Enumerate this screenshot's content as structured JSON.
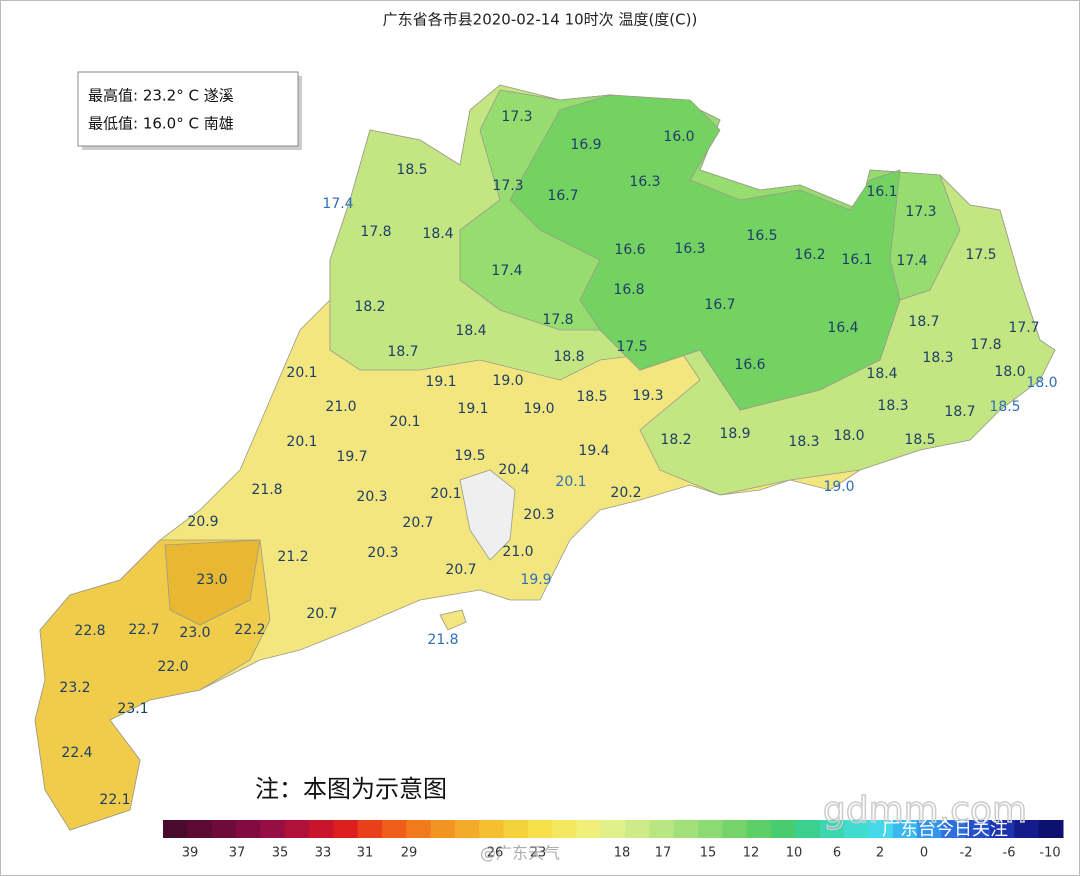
{
  "title": "广东省各市县2020-02-14 10时次 温度(度(C))",
  "summary": [
    "最高值: 23.2° C 遂溪",
    "最低值: 16.0° C 南雄"
  ],
  "note": "注：本图为示意图",
  "labels": [
    "17.3",
    "16.9",
    "16.0",
    "18.5",
    "17.3",
    "16.7",
    "16.3",
    "16.1",
    "17.3",
    "17.4",
    "17.8",
    "18.4",
    "16.6",
    "16.3",
    "16.5",
    "16.2",
    "16.1",
    "17.4",
    "17.5",
    "17.4",
    "16.8",
    "16.7",
    "18.2",
    "18.4",
    "17.8",
    "16.4",
    "18.7",
    "17.7",
    "18.7",
    "18.8",
    "17.5",
    "18.3",
    "17.8",
    "16.6",
    "20.1",
    "19.1",
    "19.0",
    "18.4",
    "18.0",
    "18.0",
    "21.0",
    "20.1",
    "19.1",
    "19.0",
    "18.5",
    "19.3",
    "18.3",
    "18.7",
    "18.5",
    "20.1",
    "18.2",
    "18.9",
    "18.3",
    "18.0",
    "18.5",
    "19.7",
    "19.5",
    "20.4",
    "19.4",
    "20.1",
    "19.0",
    "21.8",
    "20.3",
    "20.1",
    "20.2",
    "20.9",
    "20.7",
    "20.3",
    "21.2",
    "20.3",
    "21.0",
    "20.7",
    "19.9",
    "23.0",
    "22.8",
    "22.7",
    "23.0",
    "22.2",
    "20.7",
    "21.8",
    "22.0",
    "23.2",
    "23.1",
    "22.4",
    "22.1"
  ],
  "colorbar": {
    "colors": [
      "#4a0a2e",
      "#5c0a33",
      "#6e0b3a",
      "#820c40",
      "#960e44",
      "#b0103a",
      "#c8142c",
      "#dc1e1e",
      "#e8401a",
      "#ee5e18",
      "#f07a1c",
      "#f29422",
      "#f4aa2a",
      "#f5bf30",
      "#f6d23a",
      "#f5e04a",
      "#f3e860",
      "#eef07a",
      "#e0f08a",
      "#cdeb88",
      "#b8e680",
      "#a2e07a",
      "#8cda72",
      "#74d46a",
      "#5ccf66",
      "#48cc70",
      "#3cd08e",
      "#3cd6b0",
      "#40dcd0",
      "#44d8ea",
      "#3cb8f0",
      "#3494ec",
      "#2c70e0",
      "#2450cc",
      "#1c34b0",
      "#141c8c",
      "#0e1070"
    ],
    "ticks": [
      "39",
      "37",
      "35",
      "33",
      "31",
      "29",
      "26",
      "23",
      "18",
      "17",
      "15",
      "12",
      "10",
      "6",
      "2",
      "0",
      "-2",
      "-6",
      "-10"
    ]
  },
  "watermarks": [
    "gdmm.com",
    "广东台今日关注",
    "@广东天气"
  ]
}
